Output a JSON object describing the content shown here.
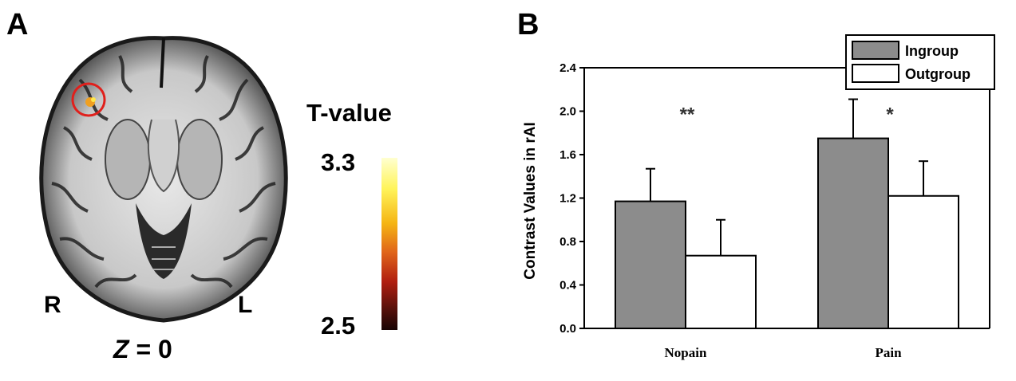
{
  "panel_a": {
    "letter": "A",
    "orientation_right": "R",
    "orientation_left": "L",
    "slice_axis": "Z",
    "slice_value": "= 0",
    "colorbar": {
      "title": "T-value",
      "max_label": "3.3",
      "min_label": "2.5",
      "min": 2.5,
      "max": 3.3
    },
    "colors": {
      "highlight_circle": "#e0201c"
    }
  },
  "panel_b": {
    "letter": "B"
  },
  "chart_data": {
    "type": "bar",
    "title": "",
    "xlabel": "",
    "ylabel": "Contrast Values in rAI",
    "ylim": [
      0.0,
      2.4
    ],
    "yticks": [
      0.0,
      0.4,
      0.8,
      1.2,
      1.6,
      2.0,
      2.4
    ],
    "ytick_labels": [
      "0.0",
      "0.4",
      "0.8",
      "1.2",
      "1.6",
      "2.0",
      "2.4"
    ],
    "categories": [
      "Nopain",
      "Pain"
    ],
    "series": [
      {
        "name": "Ingroup",
        "values": [
          1.17,
          1.75
        ],
        "errors": [
          0.3,
          0.36
        ],
        "color": "#8c8c8c"
      },
      {
        "name": "Outgroup",
        "values": [
          0.67,
          1.22
        ],
        "errors": [
          0.33,
          0.32
        ],
        "color": "#ffffff"
      }
    ],
    "annotations": [
      "**",
      "*"
    ],
    "legend": [
      "Ingroup",
      "Outgroup"
    ],
    "legend_position": "top-right",
    "grid": false
  }
}
